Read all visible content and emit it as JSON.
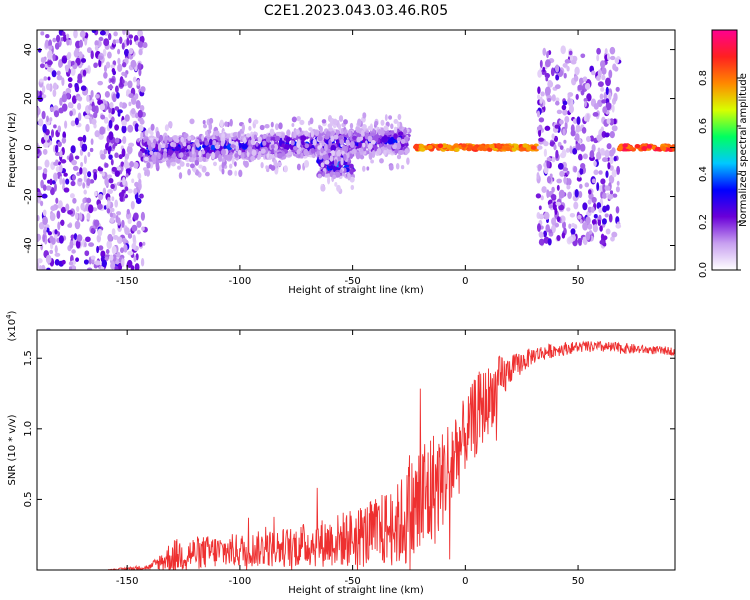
{
  "title": "C2E1.2023.043.03.46.R05",
  "chart_data": [
    {
      "type": "heatmap",
      "xlabel": "Height of straight line (km)",
      "ylabel": "Frequency (Hz)",
      "xlim": [
        -190,
        93
      ],
      "ylim": [
        -50,
        48
      ],
      "x_ticks": [
        -150,
        -100,
        -50,
        0,
        50
      ],
      "y_ticks": [
        -40,
        -20,
        0,
        20,
        40
      ],
      "colorbar": {
        "label": "Normalized spectral amplitude",
        "range": [
          0,
          1
        ],
        "ticks": [
          0.0,
          0.2,
          0.4,
          0.6,
          0.8
        ],
        "colors": [
          "#ffffff",
          "#c8a0f0",
          "#6a00d8",
          "#0000ff",
          "#00c8ff",
          "#00ff60",
          "#d8ff00",
          "#ff8800",
          "#ff2020",
          "#ff0090"
        ]
      },
      "features": [
        {
          "x_range": [
            -190,
            -142
          ],
          "freq_range": [
            -50,
            48
          ],
          "amplitude": 0.05,
          "note": "broadband noise"
        },
        {
          "x_range": [
            -142,
            -25
          ],
          "center_freq_start": -1,
          "center_freq_end": 3,
          "amplitude": 0.3
        },
        {
          "x_range": [
            -65,
            -50
          ],
          "center_freq": -7,
          "amplitude": 0.35
        },
        {
          "x_range": [
            -22,
            32
          ],
          "center_freq": 0,
          "amplitude": 0.85
        },
        {
          "x_range": [
            32,
            68
          ],
          "freq_range": [
            -40,
            40
          ],
          "amplitude": 0.1,
          "note": "broadband"
        },
        {
          "x_range": [
            68,
            93
          ],
          "center_freq": 0,
          "amplitude": 0.9
        }
      ]
    },
    {
      "type": "line",
      "xlabel": "Height of straight line (km)",
      "ylabel": "SNR (10 * v/v)",
      "exponent_label": "(x10",
      "exponent_power": "4",
      "exponent_close": ")",
      "xlim": [
        -190,
        93
      ],
      "ylim": [
        0,
        1.7
      ],
      "x_ticks": [
        -150,
        -100,
        -50,
        0,
        50
      ],
      "y_ticks": [
        0.5,
        1.0,
        1.5
      ],
      "y_tick_labels": [
        "0.5",
        "1.0",
        "1.5"
      ],
      "series": [
        {
          "color": "#ee3030",
          "x": [
            -190,
            -160,
            -140,
            -130,
            -120,
            -100,
            -80,
            -60,
            -40,
            -30,
            -22,
            -18,
            -10,
            -5,
            0,
            5,
            10,
            15,
            20,
            30,
            40,
            50,
            60,
            70,
            80,
            93
          ],
          "y": [
            0.0,
            0.0,
            0.02,
            0.1,
            0.12,
            0.14,
            0.16,
            0.2,
            0.26,
            0.32,
            0.42,
            0.5,
            0.65,
            0.8,
            0.95,
            1.1,
            1.2,
            1.32,
            1.42,
            1.52,
            1.56,
            1.58,
            1.58,
            1.57,
            1.56,
            1.55
          ],
          "noise": [
            0.0,
            0.0,
            0.02,
            0.12,
            0.12,
            0.12,
            0.14,
            0.18,
            0.25,
            0.3,
            0.45,
            0.5,
            0.35,
            0.4,
            0.25,
            0.3,
            0.25,
            0.2,
            0.1,
            0.06,
            0.05,
            0.04,
            0.04,
            0.04,
            0.03,
            0.03
          ]
        }
      ]
    }
  ]
}
